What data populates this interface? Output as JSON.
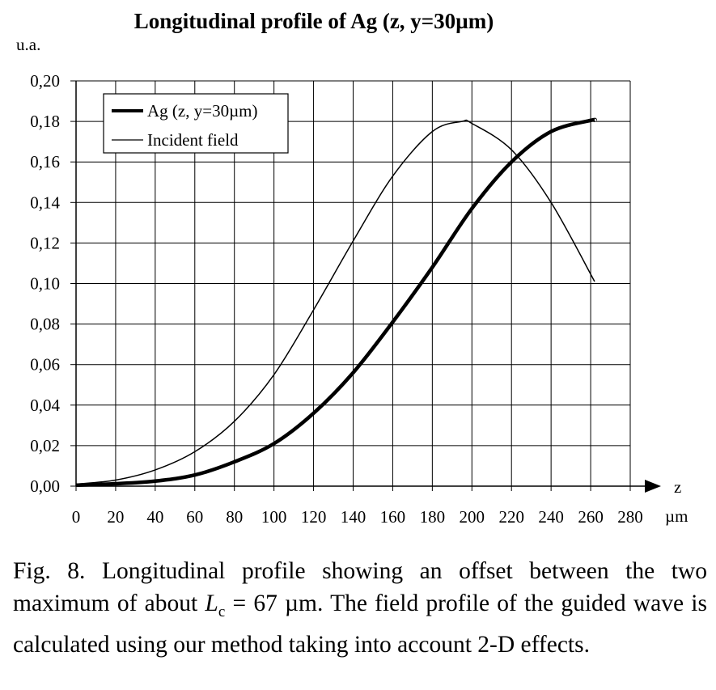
{
  "chart_data": {
    "type": "line",
    "title": "Longitudinal profile of Ag (z, y=30µm)",
    "ylabel": "u.a.",
    "xlabel": "z",
    "xunit": "µm",
    "xlim": [
      0,
      280
    ],
    "ylim": [
      0,
      0.2
    ],
    "xticks": [
      "0",
      "20",
      "40",
      "60",
      "80",
      "100",
      "120",
      "140",
      "160",
      "180",
      "200",
      "220",
      "240",
      "260",
      "280"
    ],
    "yticks": [
      "0,00",
      "0,02",
      "0,04",
      "0,06",
      "0,08",
      "0,10",
      "0,12",
      "0,14",
      "0,16",
      "0,18",
      "0,20"
    ],
    "grid": true,
    "legend_position": "top-left",
    "series": [
      {
        "name": "Ag (z, y=30µm)",
        "style": "thick",
        "x": [
          0,
          20,
          40,
          60,
          80,
          100,
          120,
          140,
          160,
          180,
          200,
          220,
          240,
          260,
          262
        ],
        "y": [
          0.0005,
          0.0012,
          0.0025,
          0.0055,
          0.012,
          0.021,
          0.036,
          0.056,
          0.081,
          0.108,
          0.137,
          0.16,
          0.175,
          0.1805,
          0.1805
        ]
      },
      {
        "name": "Incident field",
        "style": "thin",
        "x": [
          0,
          20,
          40,
          60,
          80,
          100,
          120,
          140,
          160,
          180,
          195,
          200,
          220,
          240,
          262
        ],
        "y": [
          0.001,
          0.003,
          0.008,
          0.017,
          0.032,
          0.055,
          0.087,
          0.121,
          0.153,
          0.175,
          0.18,
          0.179,
          0.166,
          0.14,
          0.101
        ]
      }
    ]
  },
  "caption": {
    "prefix": "Fig. 8. Longitudinal profile showing an offset between the two maximum of about ",
    "symbol": "L",
    "subscript": "c",
    "suffix": " = 67 µm. The field profile of the guided wave is calculated using our method taking into account 2-D effects."
  }
}
